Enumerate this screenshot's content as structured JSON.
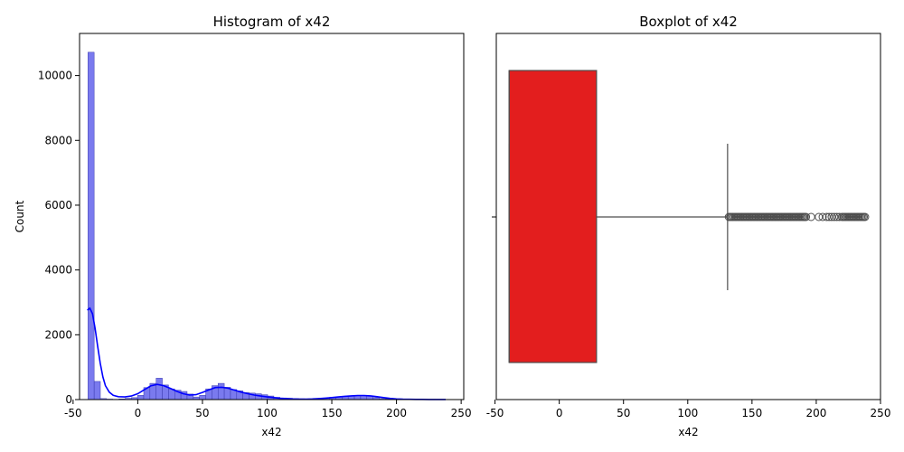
{
  "chart_data": [
    {
      "type": "bar",
      "title": "Histogram of x42",
      "xlabel": "x42",
      "ylabel": "Count",
      "xlim": [
        -45,
        252
      ],
      "ylim": [
        0,
        11300
      ],
      "xticks": [
        -50,
        0,
        50,
        100,
        150,
        200,
        250
      ],
      "yticks": [
        0,
        2000,
        4000,
        6000,
        8000,
        10000
      ],
      "bin_width": 4.79,
      "bin_starts": [
        -38.5,
        -33.71,
        -28.92,
        -24.13,
        -19.34,
        -14.55,
        -9.76,
        -4.97,
        -0.18,
        4.61,
        9.4,
        14.19,
        18.98,
        23.77,
        28.56,
        33.35,
        38.14,
        42.93,
        47.72,
        52.51,
        57.3,
        62.09,
        66.88,
        71.67,
        76.46,
        81.25,
        86.04,
        90.83,
        95.62,
        100.41,
        105.2,
        109.99,
        114.78,
        119.57,
        124.36,
        129.15,
        133.94,
        138.73,
        143.52,
        148.31,
        153.1,
        157.89,
        162.68,
        167.47,
        172.26,
        177.05,
        181.84,
        186.63,
        191.42,
        196.21,
        201.0,
        205.79,
        210.58,
        215.37,
        220.16,
        224.95,
        229.74,
        234.53
      ],
      "counts": [
        10720,
        560,
        30,
        15,
        10,
        20,
        40,
        60,
        130,
        370,
        500,
        660,
        450,
        330,
        290,
        250,
        170,
        80,
        130,
        330,
        430,
        500,
        380,
        310,
        270,
        220,
        200,
        180,
        150,
        110,
        70,
        50,
        40,
        30,
        25,
        20,
        20,
        30,
        50,
        70,
        80,
        100,
        110,
        120,
        120,
        110,
        60,
        30,
        20,
        15,
        10,
        10,
        10,
        10,
        8,
        8,
        6,
        5
      ],
      "kde": {
        "x": [
          -39,
          -37,
          -35,
          -33,
          -31,
          -29,
          -27,
          -25,
          -22,
          -19,
          -15,
          -10,
          -5,
          0,
          5,
          10,
          15,
          20,
          25,
          30,
          35,
          40,
          45,
          50,
          55,
          60,
          65,
          70,
          75,
          80,
          85,
          90,
          95,
          100,
          105,
          110,
          115,
          120,
          125,
          130,
          135,
          140,
          145,
          150,
          155,
          160,
          165,
          170,
          175,
          180,
          185,
          190,
          195,
          200,
          205,
          210,
          215,
          220,
          225,
          230,
          235,
          238
        ],
        "y": [
          2760,
          2820,
          2650,
          2200,
          1650,
          1120,
          700,
          430,
          230,
          130,
          90,
          80,
          110,
          180,
          300,
          420,
          470,
          430,
          350,
          260,
          180,
          140,
          150,
          220,
          300,
          370,
          380,
          350,
          290,
          230,
          180,
          140,
          110,
          80,
          60,
          40,
          30,
          20,
          15,
          15,
          20,
          30,
          45,
          60,
          80,
          100,
          115,
          125,
          125,
          115,
          90,
          60,
          35,
          20,
          12,
          8,
          6,
          5,
          4,
          3,
          2,
          2
        ]
      },
      "colors": {
        "bar": "#7a7aee",
        "bar_edge": "#3a3ab0",
        "kde": "#0000ff"
      }
    },
    {
      "type": "box",
      "title": "Boxplot of x42",
      "xlabel": "x42",
      "xlim": [
        -49,
        250
      ],
      "xticks": [
        -50,
        0,
        50,
        100,
        150,
        200,
        250
      ],
      "box": {
        "whisker_low": -39,
        "q1": -39,
        "median": -39,
        "q3": 29,
        "whisker_high": 131
      },
      "outliers": [
        132,
        133,
        134,
        135,
        136,
        137,
        138,
        139,
        140,
        141,
        142,
        143,
        144,
        145,
        146,
        147,
        148,
        149,
        150,
        151,
        152,
        153,
        154,
        155,
        156,
        157,
        158,
        159,
        160,
        161,
        162,
        163,
        164,
        165,
        166,
        167,
        168,
        169,
        170,
        171,
        172,
        173,
        174,
        175,
        176,
        177,
        178,
        179,
        180,
        181,
        182,
        183,
        184,
        185,
        186,
        187,
        188,
        189,
        190,
        191,
        192,
        196,
        202,
        205,
        208,
        210,
        212,
        214,
        216,
        218,
        220,
        221,
        222,
        223,
        224,
        225,
        226,
        227,
        228,
        229,
        230,
        231,
        232,
        233,
        234,
        235,
        236,
        237,
        238
      ],
      "colors": {
        "box": "#e31e1e",
        "line": "#4d4d4d"
      }
    }
  ]
}
